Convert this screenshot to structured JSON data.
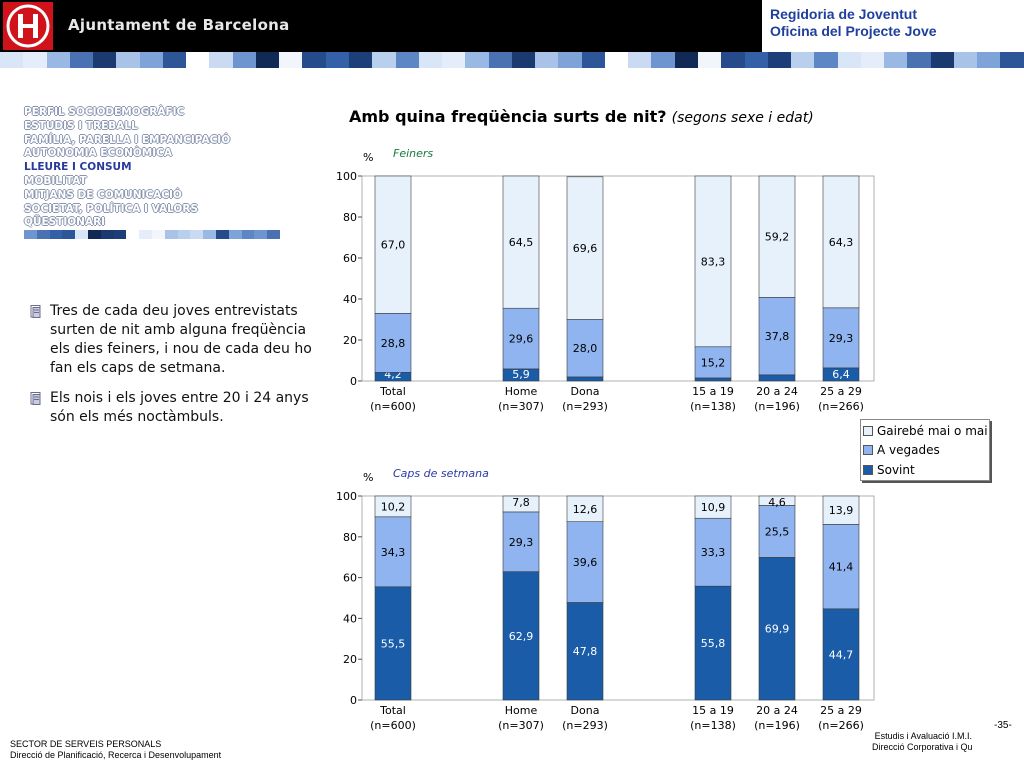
{
  "header": {
    "org_name": "Ajuntament de Barcelona",
    "right_line1": "Regidoria de Joventut",
    "right_line2": "Oficina del Projecte Jove"
  },
  "nav": {
    "items": [
      {
        "label": "PERFIL SOCIODEMOGRÀFIC",
        "active": false
      },
      {
        "label": "ESTUDIS I TREBALL",
        "active": false
      },
      {
        "label": "FAMÍLIA, PARELLA I EMPANCIPACIÓ",
        "active": false
      },
      {
        "label": "AUTONOMIA ECONÒMICA",
        "active": false
      },
      {
        "label": "LLEURE I CONSUM",
        "active": true
      },
      {
        "label": "MOBILITAT",
        "active": false
      },
      {
        "label": "MITJANS DE COMUNICACIÓ",
        "active": false
      },
      {
        "label": "SOCIETAT, POLÍTICA I VALORS",
        "active": false
      },
      {
        "label": "QÜESTIONARI",
        "active": false
      }
    ]
  },
  "bullets": [
    "Tres de cada deu joves entrevistats surten de nit amb alguna freqüència els dies feiners, i nou de cada deu ho fan els caps de setmana.",
    "Els nois i els joves entre 20 i 24 anys són els més noctàmbuls."
  ],
  "title": {
    "main": "Amb quina freqüència surts de nit?",
    "sub": "(segons sexe i edat)"
  },
  "legend": {
    "items": [
      {
        "label": "Gairebé mai o mai",
        "color": "#e6f1fc"
      },
      {
        "label": "A vegades",
        "color": "#8fb4ef"
      },
      {
        "label": "Sovint",
        "color": "#1a5ca8"
      }
    ]
  },
  "colors": {
    "sovint": "#1a5ca8",
    "a_vegades": "#8fb4ef",
    "gairebe_mai": "#e6f1fc",
    "header_text": "#1f3f9c",
    "nav_active": "#2a3a9c"
  },
  "chart_data": [
    {
      "type": "bar",
      "stacked": true,
      "title": "Feiners",
      "ylabel": "%",
      "ylim": [
        0,
        100
      ],
      "yticks": [
        0,
        20,
        40,
        60,
        80,
        100
      ],
      "categories": [
        "Total",
        "Home",
        "Dona",
        "15 a 19",
        "20 a 24",
        "25 a 29"
      ],
      "sublabels": [
        "(n=600)",
        "(n=307)",
        "(n=293)",
        "(n=138)",
        "(n=196)",
        "(n=266)"
      ],
      "series": [
        {
          "name": "Sovint",
          "values": [
            4.2,
            5.9,
            2.0,
            1.5,
            3.0,
            6.4
          ],
          "labels": [
            "4,2",
            "5,9",
            "",
            "",
            "",
            "6,4"
          ]
        },
        {
          "name": "A vegades",
          "values": [
            28.8,
            29.6,
            28.0,
            15.2,
            37.8,
            29.3
          ],
          "labels": [
            "28,8",
            "29,6",
            "28,0",
            "15,2",
            "37,8",
            "29,3"
          ]
        },
        {
          "name": "Gairebé mai o mai",
          "values": [
            67.0,
            64.5,
            69.6,
            83.3,
            59.2,
            64.3
          ],
          "labels": [
            "67,0",
            "64,5",
            "69,6",
            "83,3",
            "59,2",
            "64,3"
          ]
        }
      ]
    },
    {
      "type": "bar",
      "stacked": true,
      "title": "Caps de setmana",
      "ylabel": "%",
      "ylim": [
        0,
        100
      ],
      "yticks": [
        0,
        20,
        40,
        60,
        80,
        100
      ],
      "categories": [
        "Total",
        "Home",
        "Dona",
        "15 a 19",
        "20 a 24",
        "25 a 29"
      ],
      "sublabels": [
        "(n=600)",
        "(n=307)",
        "(n=293)",
        "(n=138)",
        "(n=196)",
        "(n=266)"
      ],
      "series": [
        {
          "name": "Sovint",
          "values": [
            55.5,
            62.9,
            47.8,
            55.8,
            69.9,
            44.7
          ],
          "labels": [
            "55,5",
            "62,9",
            "47,8",
            "55,8",
            "69,9",
            "44,7"
          ]
        },
        {
          "name": "A vegades",
          "values": [
            34.3,
            29.3,
            39.6,
            33.3,
            25.5,
            41.4
          ],
          "labels": [
            "34,3",
            "29,3",
            "39,6",
            "33,3",
            "25,5",
            "41,4"
          ]
        },
        {
          "name": "Gairebé mai o mai",
          "values": [
            10.2,
            7.8,
            12.6,
            10.9,
            4.6,
            13.9
          ],
          "labels": [
            "10,2",
            "7,8",
            "12,6",
            "10,9",
            "4,6",
            "13,9"
          ]
        }
      ]
    }
  ],
  "footer": {
    "page_number": "-35-",
    "right_line1": "Estudis i Avaluació I.M.I.",
    "right_line2": "Direcció Corporativa i Qualitat",
    "left_line1": "SECTOR DE SERVEIS PERSONALS",
    "left_line2": "Direcció de Planificació, Recerca i Desenvolupament"
  }
}
